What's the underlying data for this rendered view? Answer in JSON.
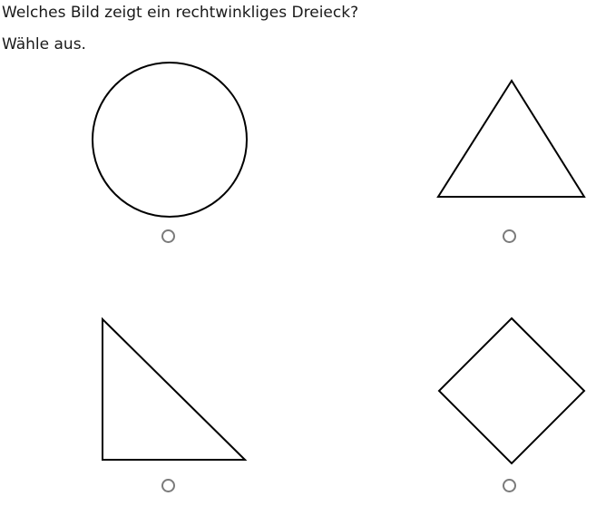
{
  "question": "Welches Bild zeigt ein rechtwinkliges Dreieck?",
  "instruction": "Wähle aus.",
  "options": [
    {
      "shape": "circle",
      "selected": false
    },
    {
      "shape": "equilateral-triangle",
      "selected": false
    },
    {
      "shape": "right-triangle",
      "selected": false
    },
    {
      "shape": "rhombus",
      "selected": false
    }
  ],
  "colors": {
    "shape_stroke": "#000000",
    "radio_border": "#7b7b7b",
    "text": "#1a1a1a",
    "background": "#ffffff"
  }
}
